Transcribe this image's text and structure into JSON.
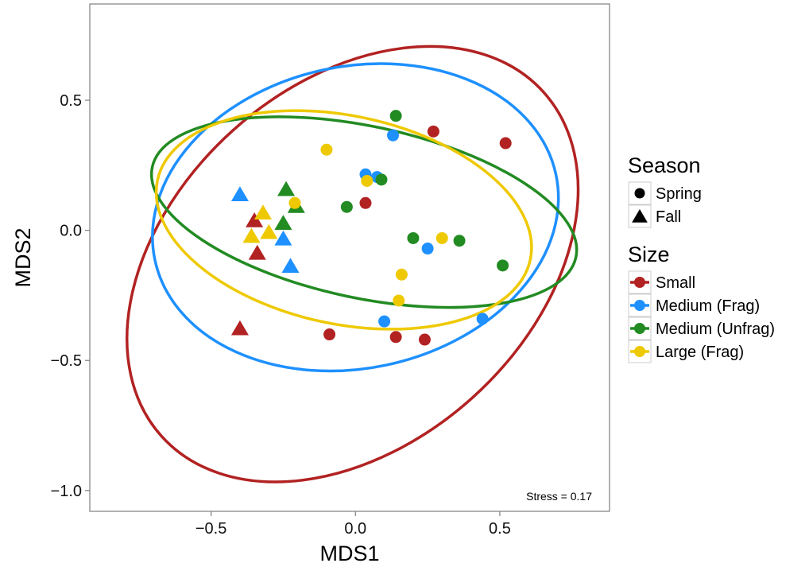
{
  "chart_data": {
    "type": "scatter",
    "xlabel": "MDS1",
    "ylabel": "MDS2",
    "xlim": [
      -0.92,
      0.88
    ],
    "ylim": [
      -1.08,
      0.87
    ],
    "x_ticks": [
      -0.5,
      0.0,
      0.5
    ],
    "x_tick_labels": [
      "−0.5",
      "0.0",
      "0.5"
    ],
    "y_ticks": [
      -1.0,
      -0.5,
      0.0,
      0.5
    ],
    "y_tick_labels": [
      "−1.0",
      "−0.5",
      "0.0",
      "0.5"
    ],
    "grid": false,
    "legend_position": "right",
    "annotation": "Stress = 0.17",
    "legends": {
      "season": {
        "title": "Season",
        "entries": [
          {
            "label": "Spring",
            "shape": "circle"
          },
          {
            "label": "Fall",
            "shape": "triangle"
          }
        ]
      },
      "size": {
        "title": "Size",
        "entries": [
          {
            "label": "Small",
            "color": "#b22222"
          },
          {
            "label": "Medium (Frag)",
            "color": "#1e90ff"
          },
          {
            "label": "Medium (Unfrag)",
            "color": "#228b22"
          },
          {
            "label": "Large (Frag)",
            "color": "#eec900"
          }
        ]
      }
    },
    "ellipses": [
      {
        "group": "Small",
        "cx": -0.01,
        "cy": -0.13,
        "rx": 0.89,
        "ry": 0.69,
        "angle": 42
      },
      {
        "group": "Medium (Frag)",
        "cx": 0.0,
        "cy": 0.05,
        "rx": 0.71,
        "ry": 0.58,
        "angle": 12
      },
      {
        "group": "Medium (Unfrag)",
        "cx": 0.03,
        "cy": 0.07,
        "rx": 0.75,
        "ry": 0.33,
        "angle": -12
      },
      {
        "group": "Large (Frag)",
        "cx": -0.04,
        "cy": 0.04,
        "rx": 0.66,
        "ry": 0.4,
        "angle": -12
      }
    ],
    "series": [
      {
        "name": "Small",
        "points": [
          {
            "x": 0.27,
            "y": 0.38,
            "season": "Spring"
          },
          {
            "x": 0.52,
            "y": 0.335,
            "season": "Spring"
          },
          {
            "x": 0.035,
            "y": 0.105,
            "season": "Spring"
          },
          {
            "x": -0.09,
            "y": -0.4,
            "season": "Spring"
          },
          {
            "x": 0.14,
            "y": -0.41,
            "season": "Spring"
          },
          {
            "x": 0.24,
            "y": -0.42,
            "season": "Spring"
          },
          {
            "x": -0.4,
            "y": -0.38,
            "season": "Fall"
          },
          {
            "x": -0.35,
            "y": 0.035,
            "season": "Fall"
          },
          {
            "x": -0.34,
            "y": -0.09,
            "season": "Fall"
          }
        ]
      },
      {
        "name": "Medium (Frag)",
        "points": [
          {
            "x": 0.13,
            "y": 0.365,
            "season": "Spring"
          },
          {
            "x": 0.035,
            "y": 0.215,
            "season": "Spring"
          },
          {
            "x": 0.075,
            "y": 0.205,
            "season": "Spring"
          },
          {
            "x": 0.25,
            "y": -0.07,
            "season": "Spring"
          },
          {
            "x": 0.1,
            "y": -0.35,
            "season": "Spring"
          },
          {
            "x": 0.44,
            "y": -0.34,
            "season": "Spring"
          },
          {
            "x": -0.4,
            "y": 0.135,
            "season": "Fall"
          },
          {
            "x": -0.25,
            "y": -0.035,
            "season": "Fall"
          },
          {
            "x": -0.225,
            "y": -0.14,
            "season": "Fall"
          }
        ]
      },
      {
        "name": "Medium (Unfrag)",
        "points": [
          {
            "x": 0.14,
            "y": 0.44,
            "season": "Spring"
          },
          {
            "x": 0.09,
            "y": 0.195,
            "season": "Spring"
          },
          {
            "x": -0.03,
            "y": 0.09,
            "season": "Spring"
          },
          {
            "x": 0.2,
            "y": -0.03,
            "season": "Spring"
          },
          {
            "x": 0.36,
            "y": -0.04,
            "season": "Spring"
          },
          {
            "x": 0.51,
            "y": -0.135,
            "season": "Spring"
          },
          {
            "x": -0.24,
            "y": 0.155,
            "season": "Fall"
          },
          {
            "x": -0.205,
            "y": 0.09,
            "season": "Fall"
          },
          {
            "x": -0.25,
            "y": 0.025,
            "season": "Fall"
          }
        ]
      },
      {
        "name": "Large (Frag)",
        "points": [
          {
            "x": -0.1,
            "y": 0.31,
            "season": "Spring"
          },
          {
            "x": 0.04,
            "y": 0.19,
            "season": "Spring"
          },
          {
            "x": -0.21,
            "y": 0.105,
            "season": "Spring"
          },
          {
            "x": 0.3,
            "y": -0.03,
            "season": "Spring"
          },
          {
            "x": 0.16,
            "y": -0.17,
            "season": "Spring"
          },
          {
            "x": 0.15,
            "y": -0.27,
            "season": "Spring"
          },
          {
            "x": -0.32,
            "y": 0.065,
            "season": "Fall"
          },
          {
            "x": -0.36,
            "y": -0.025,
            "season": "Fall"
          },
          {
            "x": -0.3,
            "y": -0.01,
            "season": "Fall"
          }
        ]
      }
    ]
  }
}
